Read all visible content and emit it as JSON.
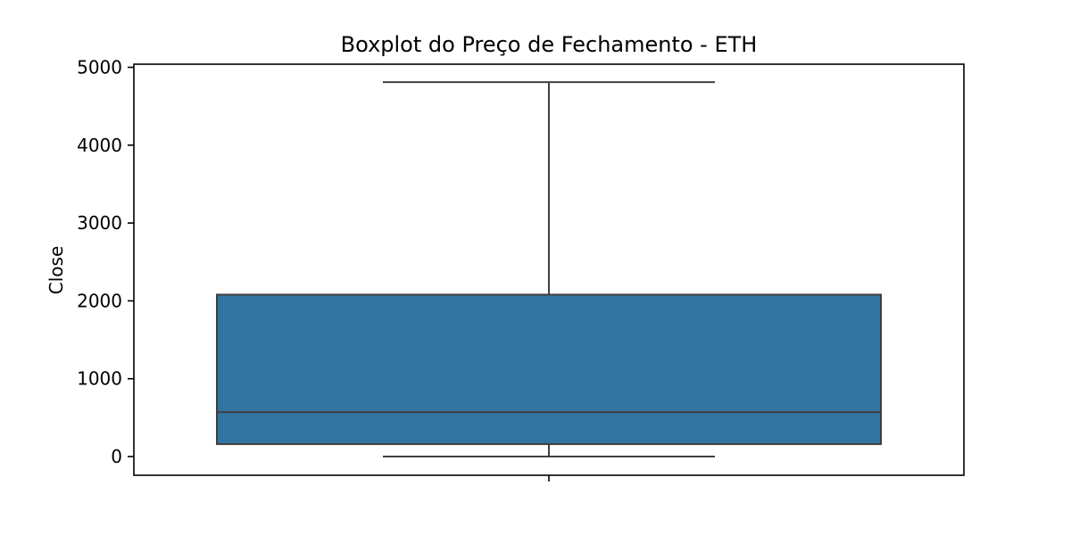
{
  "chart_data": {
    "type": "box",
    "title": "Boxplot do Preço de Fechamento - ETH",
    "xlabel": "",
    "ylabel": "Close",
    "ylim": [
      -240,
      5040
    ],
    "yticks": [
      0,
      1000,
      2000,
      3000,
      4000,
      5000
    ],
    "grid": false,
    "series": [
      {
        "whisker_low": 0,
        "q1": 160,
        "median": 570,
        "q3": 2080,
        "whisker_high": 4810
      }
    ],
    "colors": {
      "box_fill": "#3274a1",
      "box_edge": "#3f3f3f",
      "axes": "#000000"
    }
  }
}
